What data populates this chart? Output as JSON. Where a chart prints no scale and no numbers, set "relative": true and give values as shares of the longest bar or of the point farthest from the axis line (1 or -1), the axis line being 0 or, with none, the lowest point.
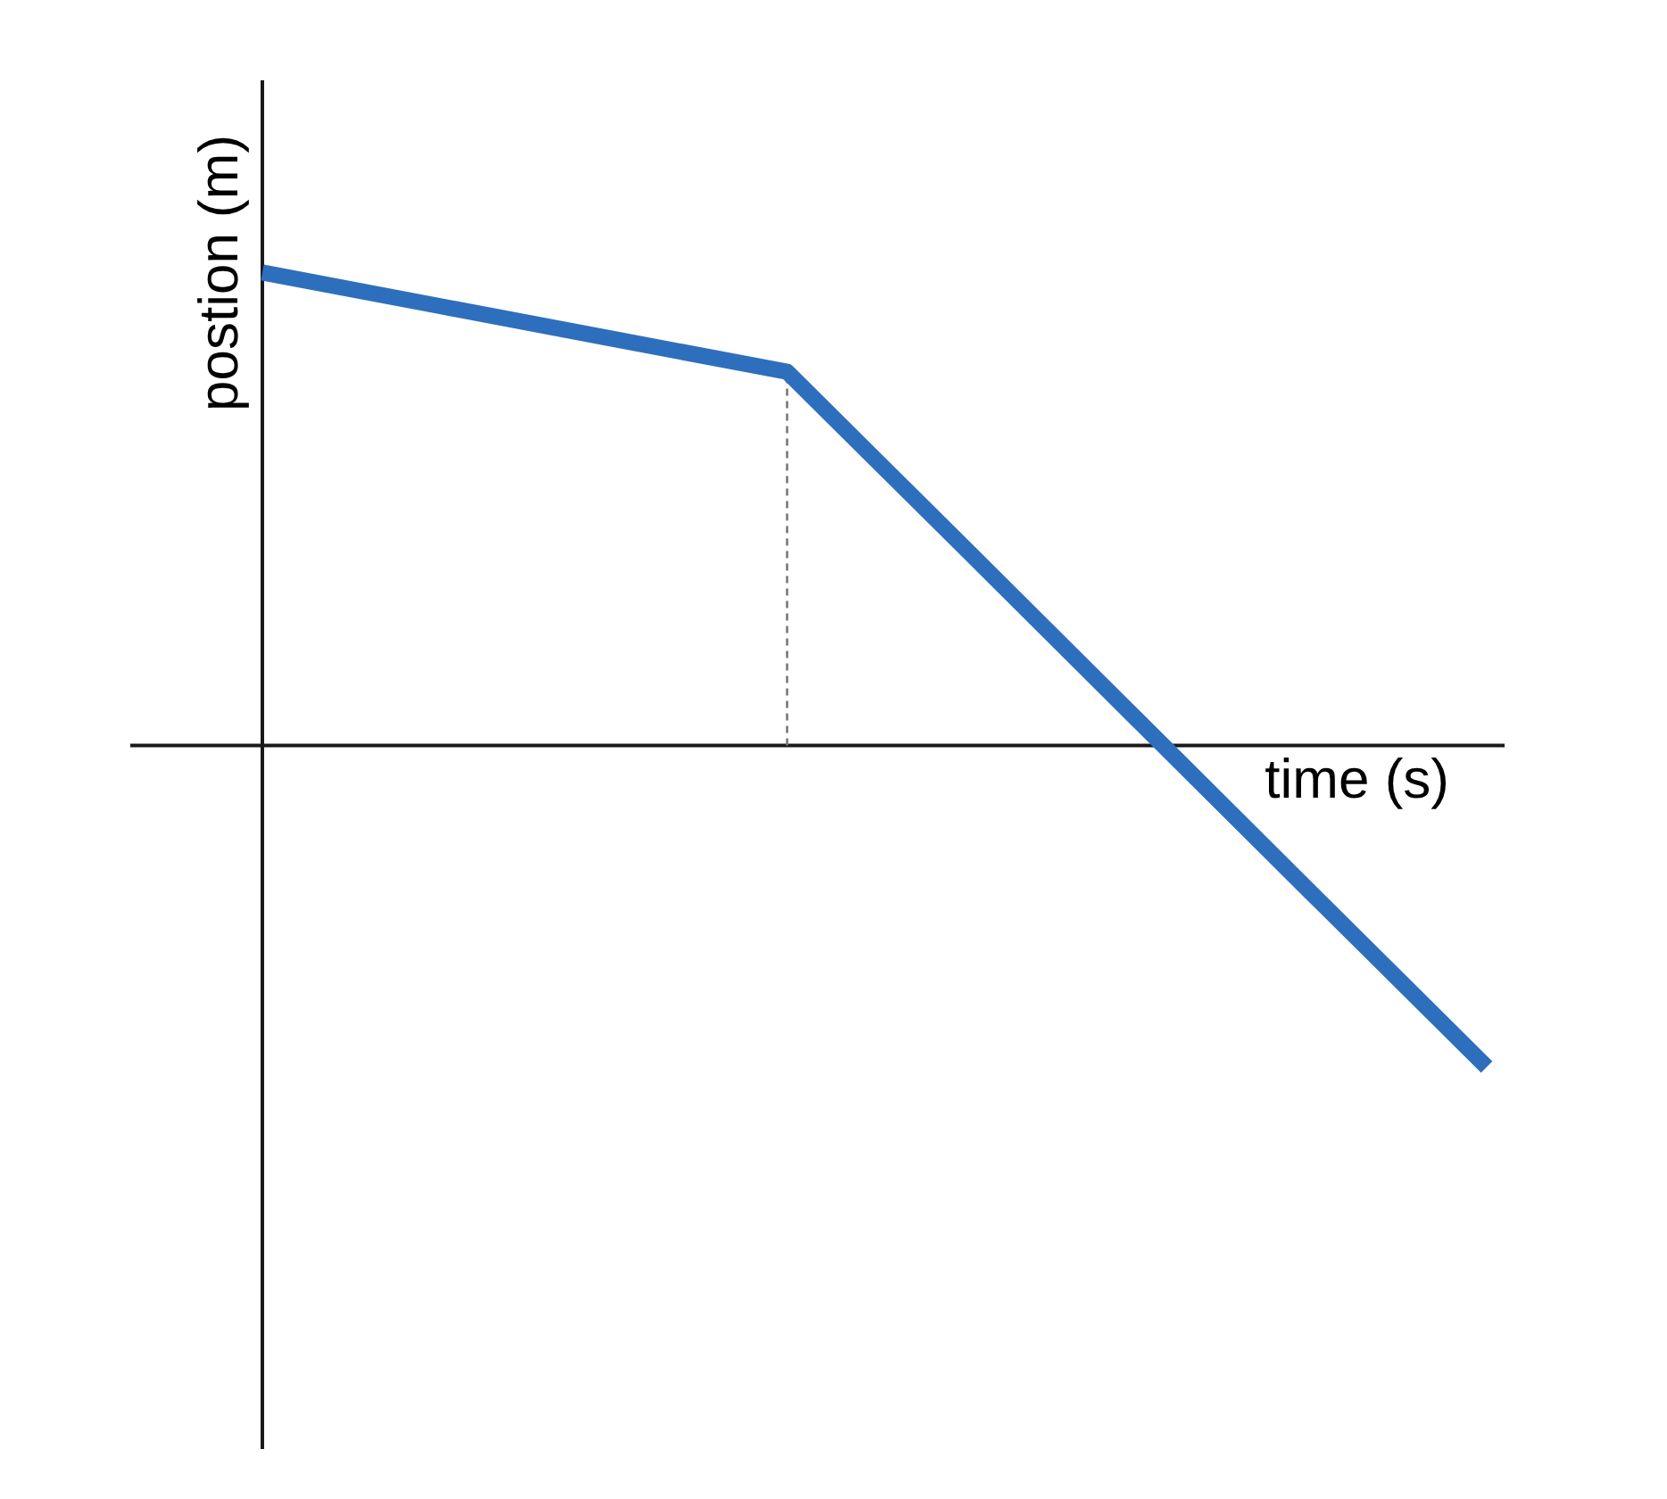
{
  "chart_data": {
    "type": "line",
    "relative": true,
    "xlabel": "time (s)",
    "ylabel": "postion (m)",
    "categories": [
      null,
      null,
      null,
      null,
      null,
      null,
      null,
      null
    ],
    "series": [
      {
        "color": "#2e6fbd",
        "values": [
          1,
          0.93,
          0.86,
          0.79,
          0.423,
          0.055,
          -0.313,
          -0.68
        ]
      }
    ],
    "marker": "none",
    "line_style": "solid"
  }
}
